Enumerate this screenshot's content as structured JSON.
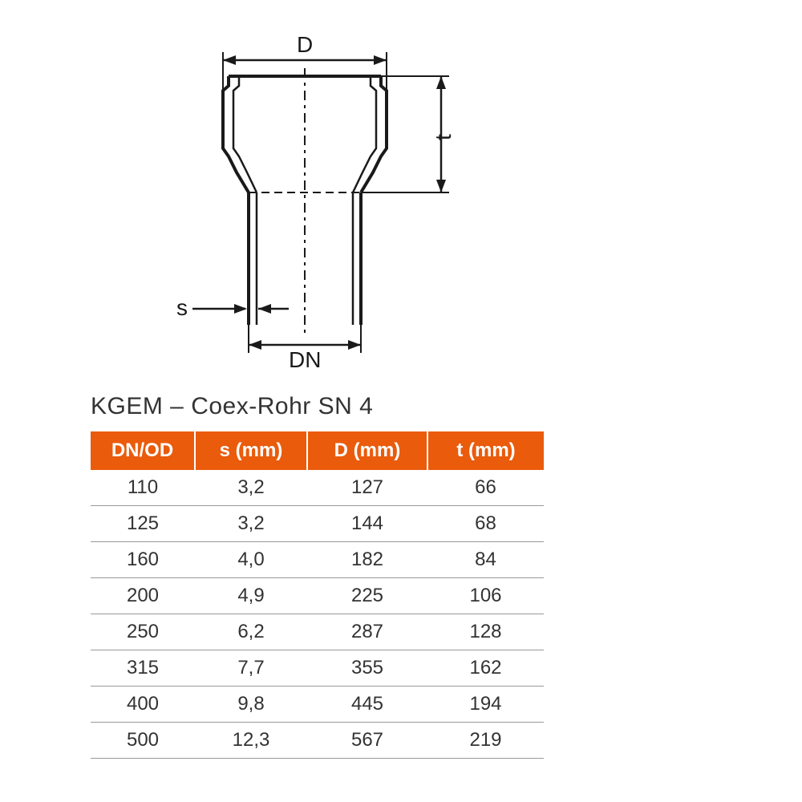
{
  "diagram": {
    "labels": {
      "D": "D",
      "t": "t",
      "s": "s",
      "DN": "DN"
    },
    "stroke_color": "#1a1a1a",
    "stroke_width_main": 4,
    "stroke_width_dim": 2.5,
    "dash_pattern": "8,6,3,6"
  },
  "title": "KGEM – Coex-Rohr SN 4",
  "table": {
    "header_bg": "#ea5b0c",
    "header_fg": "#ffffff",
    "cell_fg": "#333333",
    "border_color": "#999999",
    "columns": [
      "DN/OD",
      "s (mm)",
      "D (mm)",
      "t (mm)"
    ],
    "rows": [
      [
        "110",
        "3,2",
        "127",
        "66"
      ],
      [
        "125",
        "3,2",
        "144",
        "68"
      ],
      [
        "160",
        "4,0",
        "182",
        "84"
      ],
      [
        "200",
        "4,9",
        "225",
        "106"
      ],
      [
        "250",
        "6,2",
        "287",
        "128"
      ],
      [
        "315",
        "7,7",
        "355",
        "162"
      ],
      [
        "400",
        "9,8",
        "445",
        "194"
      ],
      [
        "500",
        "12,3",
        "567",
        "219"
      ]
    ]
  }
}
